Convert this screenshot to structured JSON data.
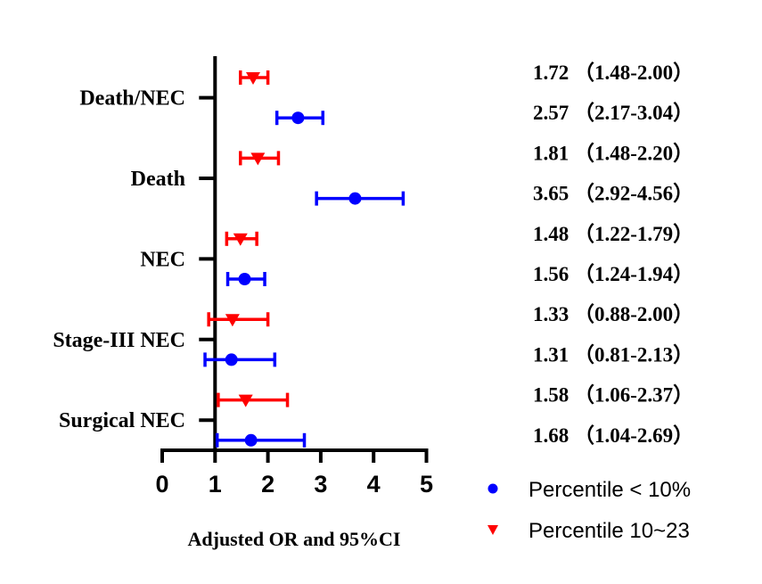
{
  "chart_data": {
    "type": "forest",
    "xlabel": "Adjusted OR and 95%CI",
    "xlim": [
      0,
      5
    ],
    "xticks": [
      "0",
      "1",
      "2",
      "3",
      "4",
      "5"
    ],
    "reference_line": 1,
    "categories": [
      "Death/NEC",
      "Death",
      "NEC",
      "Stage-III NEC",
      "Surgical NEC"
    ],
    "series": [
      {
        "name": "Percentile 10~23",
        "color": "#ff0000",
        "marker": "triangle-down-icon",
        "points": [
          {
            "category": "Death/NEC",
            "or": 1.72,
            "lo": 1.48,
            "hi": 2.0,
            "label": "1.72 （1.48-2.00）"
          },
          {
            "category": "Death",
            "or": 1.81,
            "lo": 1.48,
            "hi": 2.2,
            "label": "1.81 （1.48-2.20）"
          },
          {
            "category": "NEC",
            "or": 1.48,
            "lo": 1.22,
            "hi": 1.79,
            "label": "1.48 （1.22-1.79）"
          },
          {
            "category": "Stage-III NEC",
            "or": 1.33,
            "lo": 0.88,
            "hi": 2.0,
            "label": "1.33 （0.88-2.00）"
          },
          {
            "category": "Surgical NEC",
            "or": 1.58,
            "lo": 1.06,
            "hi": 2.37,
            "label": "1.58 （1.06-2.37）"
          }
        ]
      },
      {
        "name": "Percentile < 10%",
        "color": "#0000ff",
        "marker": "circle-icon",
        "points": [
          {
            "category": "Death/NEC",
            "or": 2.57,
            "lo": 2.17,
            "hi": 3.04,
            "label": "2.57 （2.17-3.04）"
          },
          {
            "category": "Death",
            "or": 3.65,
            "lo": 2.92,
            "hi": 4.56,
            "label": "3.65 （2.92-4.56）"
          },
          {
            "category": "NEC",
            "or": 1.56,
            "lo": 1.24,
            "hi": 1.94,
            "label": "1.56 （1.24-1.94）"
          },
          {
            "category": "Stage-III NEC",
            "or": 1.31,
            "lo": 0.81,
            "hi": 2.13,
            "label": "1.31 （0.81-2.13）"
          },
          {
            "category": "Surgical NEC",
            "or": 1.68,
            "lo": 1.04,
            "hi": 2.69,
            "label": "1.68 （1.04-2.69）"
          }
        ]
      }
    ],
    "legend": {
      "placement": "bottom-right",
      "entries": [
        {
          "label": "Percentile < 10%",
          "color": "#0000ff",
          "marker": "circle-icon"
        },
        {
          "label": "Percentile 10~23",
          "color": "#ff0000",
          "marker": "triangle-down-icon"
        }
      ]
    }
  }
}
